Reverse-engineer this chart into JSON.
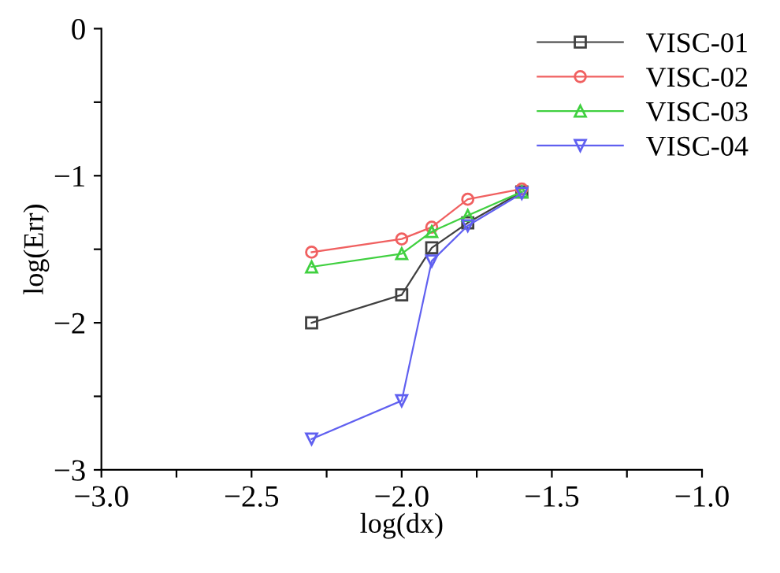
{
  "chart_data": {
    "type": "line",
    "xlabel": "log(dx)",
    "ylabel": "log(Err)",
    "xlim": [
      -3.0,
      -1.0
    ],
    "ylim": [
      -3,
      0
    ],
    "xticks": [
      {
        "value": -3.0,
        "label": "−3.0"
      },
      {
        "value": -2.75,
        "label": null
      },
      {
        "value": -2.5,
        "label": "−2.5"
      },
      {
        "value": -2.25,
        "label": null
      },
      {
        "value": -2.0,
        "label": "−2.0"
      },
      {
        "value": -1.75,
        "label": null
      },
      {
        "value": -1.5,
        "label": "−1.5"
      },
      {
        "value": -1.25,
        "label": null
      },
      {
        "value": -1.0,
        "label": "−1.0"
      }
    ],
    "yticks": [
      {
        "value": -3,
        "label": "−3"
      },
      {
        "value": -2.5,
        "label": null
      },
      {
        "value": -2,
        "label": "−2"
      },
      {
        "value": -1.5,
        "label": null
      },
      {
        "value": -1,
        "label": "−1"
      },
      {
        "value": -0.5,
        "label": null
      },
      {
        "value": 0,
        "label": "0"
      }
    ],
    "x": [
      -2.3,
      -2.0,
      -1.9,
      -1.78,
      -1.6
    ],
    "grid": false,
    "legend": "top right",
    "line_style": "solid",
    "series": [
      {
        "name": "VISC-01",
        "color": "#404040",
        "marker": "square",
        "values": [
          -2.0,
          -1.81,
          -1.49,
          -1.32,
          -1.11
        ]
      },
      {
        "name": "VISC-02",
        "color": "#f06060",
        "marker": "circle",
        "values": [
          -1.52,
          -1.43,
          -1.35,
          -1.16,
          -1.09
        ]
      },
      {
        "name": "VISC-03",
        "color": "#40d040",
        "marker": "triangle",
        "values": [
          -1.62,
          -1.53,
          -1.38,
          -1.27,
          -1.11
        ]
      },
      {
        "name": "VISC-04",
        "color": "#6060f0",
        "marker": "triangle_down",
        "values": [
          -2.79,
          -2.53,
          -1.58,
          -1.34,
          -1.12
        ]
      }
    ]
  }
}
